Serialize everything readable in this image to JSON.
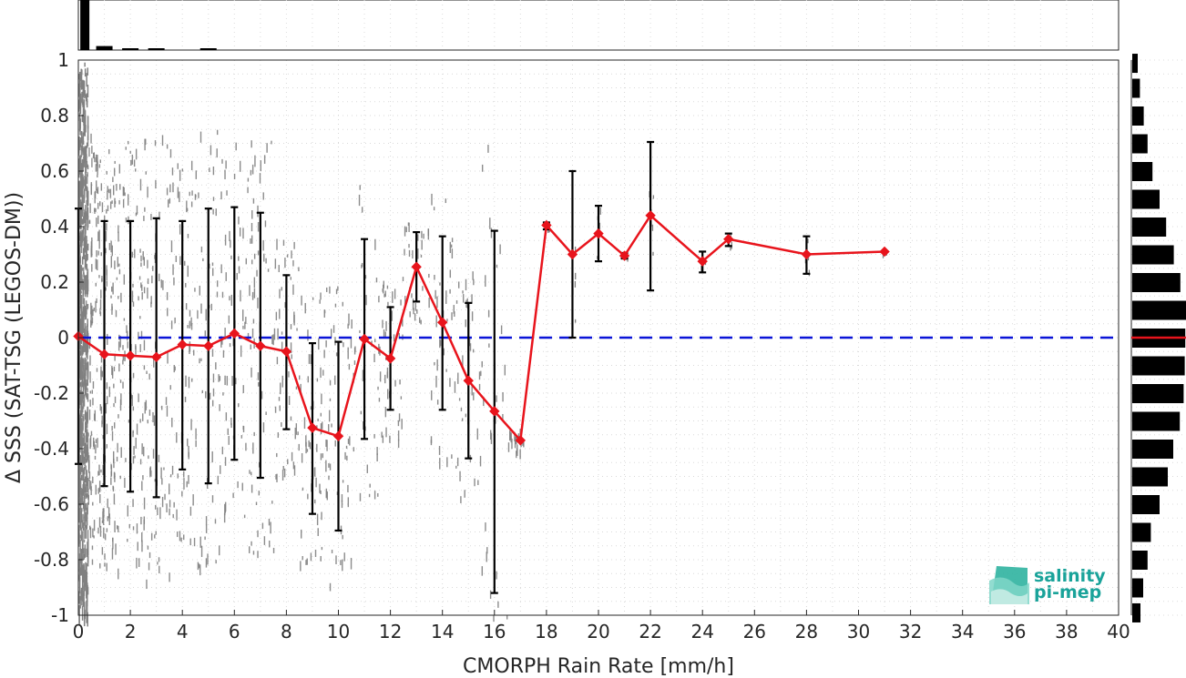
{
  "chart_data": {
    "type": "line",
    "title": "",
    "xlabel": "CMORPH Rain Rate [mm/h]",
    "ylabel": "Δ SSS (SAT-TSG (LEGOS-DM))",
    "xlim": [
      0,
      40
    ],
    "ylim": [
      -1,
      1
    ],
    "x_ticks": [
      "0",
      "2",
      "4",
      "6",
      "8",
      "10",
      "12",
      "14",
      "16",
      "18",
      "20",
      "22",
      "24",
      "26",
      "28",
      "30",
      "32",
      "34",
      "36",
      "38",
      "40"
    ],
    "y_ticks": [
      "-1",
      "-0.8",
      "-0.6",
      "-0.4",
      "-0.2",
      "0",
      "0.2",
      "0.4",
      "0.6",
      "0.8",
      "1"
    ],
    "grid": true,
    "series": [
      {
        "color": "#e8141c",
        "x": [
          0,
          1,
          2,
          3,
          4,
          5,
          6,
          7,
          8,
          9,
          10,
          11,
          12,
          13,
          14,
          15,
          16,
          17,
          18,
          19,
          20,
          21,
          22,
          24,
          25,
          28,
          31
        ],
        "y": [
          0.005,
          -0.06,
          -0.065,
          -0.07,
          -0.025,
          -0.03,
          0.015,
          -0.03,
          -0.05,
          -0.325,
          -0.355,
          -0.005,
          -0.075,
          0.255,
          0.055,
          -0.155,
          -0.265,
          -0.37,
          0.405,
          0.3,
          0.375,
          0.295,
          0.44,
          0.275,
          0.355,
          0.3,
          0.31
        ],
        "err_low": [
          -0.455,
          -0.535,
          -0.555,
          -0.575,
          -0.475,
          -0.525,
          -0.44,
          -0.505,
          -0.33,
          -0.635,
          -0.695,
          -0.365,
          -0.26,
          0.13,
          -0.26,
          -0.435,
          -0.92,
          -0.37,
          0.39,
          0,
          0.275,
          0.285,
          0.17,
          0.235,
          0.33,
          0.23,
          0.31
        ],
        "err_high": [
          0.465,
          0.42,
          0.42,
          0.43,
          0.42,
          0.465,
          0.47,
          0.45,
          0.225,
          -0.02,
          -0.015,
          0.355,
          0.11,
          0.38,
          0.365,
          0.125,
          0.385,
          -0.37,
          0.415,
          0.6,
          0.475,
          0.305,
          0.705,
          0.31,
          0.375,
          0.365,
          0.31
        ]
      },
      {
        "color": "#0a14d8",
        "style": "dashed",
        "x": [
          0,
          40
        ],
        "y": [
          0,
          0
        ]
      }
    ],
    "scatter_color": "#808080",
    "top_histogram": {
      "x": [
        0.25,
        1,
        2,
        3,
        5
      ],
      "values": [
        1.0,
        0.08,
        0.03,
        0.02,
        0.01
      ]
    },
    "right_histogram": {
      "y": [
        0.99,
        0.9,
        0.8,
        0.7,
        0.6,
        0.5,
        0.4,
        0.3,
        0.2,
        0.1,
        0,
        -0.1,
        -0.2,
        -0.3,
        -0.4,
        -0.5,
        -0.6,
        -0.7,
        -0.8,
        -0.9,
        -0.99
      ],
      "values": [
        0.1,
        0.14,
        0.21,
        0.28,
        0.37,
        0.5,
        0.62,
        0.76,
        0.88,
        1.0,
        0.97,
        0.96,
        0.94,
        0.87,
        0.75,
        0.65,
        0.5,
        0.34,
        0.28,
        0.2,
        0.15
      ],
      "marker_color": "#e8141c"
    },
    "logo": {
      "line1": "salinity",
      "line2": "pi-mep",
      "color": "#1aa39a"
    }
  }
}
